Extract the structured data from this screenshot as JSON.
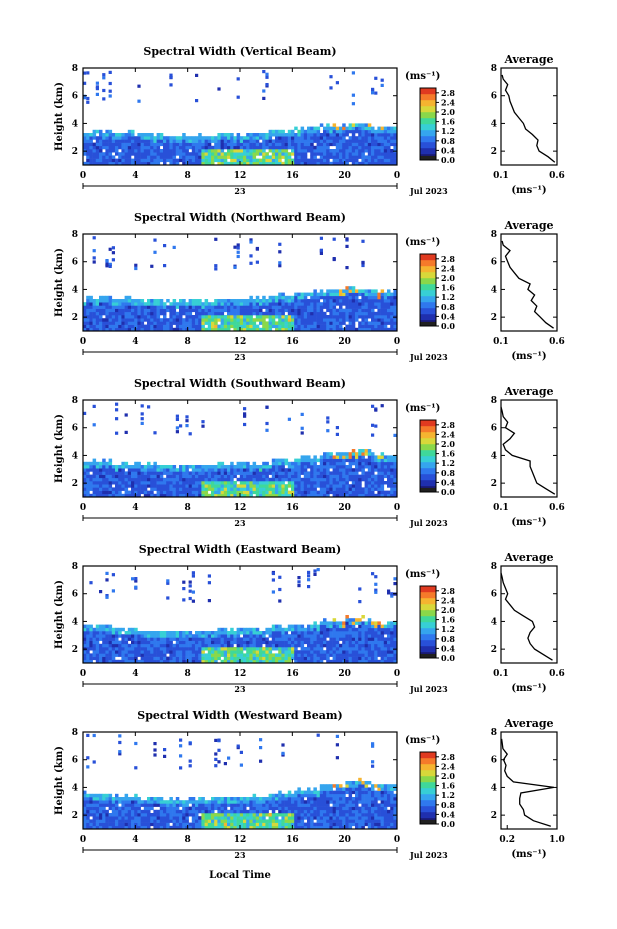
{
  "figure": {
    "xlabel": "Local Time",
    "day_label": "23",
    "month_label": "Jul 2023"
  },
  "chart_data": [
    {
      "type": "heatmap",
      "title": "Spectral Width (Vertical Beam)",
      "ylabel": "Height (km)",
      "x_ticks": [
        "0",
        "4",
        "8",
        "12",
        "16",
        "20",
        "0"
      ],
      "y_ticks": [
        "2",
        "4",
        "6",
        "8"
      ],
      "xlim": [
        0,
        24
      ],
      "ylim": [
        1,
        8
      ],
      "colorbar": {
        "unit": "(ms⁻¹)",
        "ticks": [
          "0.0",
          "0.4",
          "0.8",
          "1.2",
          "1.6",
          "2.0",
          "2.4",
          "2.8"
        ],
        "range": [
          0,
          3.0
        ]
      },
      "echo_top_km": [
        3.5,
        3.5,
        3.4,
        3.3,
        3.2,
        3.3,
        3.4,
        3.6,
        3.8,
        4.0,
        4.1,
        3.9
      ],
      "profile": {
        "title": "Average",
        "xlabel": "(ms⁻¹)",
        "x_ticks": [
          "0.1",
          "0.6"
        ],
        "xlim": [
          0.1,
          0.6
        ],
        "y_ticks": [
          "2",
          "4",
          "6",
          "8"
        ],
        "ylim": [
          1,
          8
        ],
        "heights": [
          1.2,
          1.6,
          2.0,
          2.4,
          2.8,
          3.2,
          3.6,
          4.0,
          4.4,
          4.8,
          5.2,
          5.6,
          6.0,
          6.4,
          6.8,
          7.2,
          7.5
        ],
        "values": [
          0.58,
          0.52,
          0.44,
          0.42,
          0.43,
          0.38,
          0.32,
          0.3,
          0.26,
          0.22,
          0.2,
          0.18,
          0.17,
          0.14,
          0.16,
          0.12,
          0.11
        ]
      }
    },
    {
      "type": "heatmap",
      "title": "Spectral Width (Northward Beam)",
      "ylabel": "Height (km)",
      "x_ticks": [
        "0",
        "4",
        "8",
        "12",
        "16",
        "20",
        "0"
      ],
      "y_ticks": [
        "2",
        "4",
        "6",
        "8"
      ],
      "xlim": [
        0,
        24
      ],
      "ylim": [
        1,
        8
      ],
      "colorbar": {
        "unit": "(ms⁻¹)",
        "ticks": [
          "0.0",
          "0.4",
          "0.8",
          "1.2",
          "1.6",
          "2.0",
          "2.4",
          "2.8"
        ],
        "range": [
          0,
          3.0
        ]
      },
      "echo_top_km": [
        3.6,
        3.5,
        3.4,
        3.3,
        3.3,
        3.4,
        3.5,
        3.7,
        3.9,
        4.1,
        4.2,
        4.0
      ],
      "profile": {
        "title": "Average",
        "xlabel": "(ms⁻¹)",
        "x_ticks": [
          "0.1",
          "0.6"
        ],
        "xlim": [
          0.1,
          0.6
        ],
        "y_ticks": [
          "2",
          "4",
          "6",
          "8"
        ],
        "ylim": [
          1,
          8
        ],
        "heights": [
          1.2,
          1.6,
          2.0,
          2.4,
          2.8,
          3.2,
          3.6,
          4.0,
          4.4,
          4.8,
          5.2,
          5.6,
          6.0,
          6.4,
          6.8,
          7.2,
          7.5
        ],
        "values": [
          0.57,
          0.5,
          0.45,
          0.4,
          0.42,
          0.37,
          0.4,
          0.34,
          0.36,
          0.26,
          0.22,
          0.18,
          0.16,
          0.14,
          0.18,
          0.12,
          0.11
        ]
      }
    },
    {
      "type": "heatmap",
      "title": "Spectral Width (Southward Beam)",
      "ylabel": "Height (km)",
      "x_ticks": [
        "0",
        "4",
        "8",
        "12",
        "16",
        "20",
        "0"
      ],
      "y_ticks": [
        "2",
        "4",
        "6",
        "8"
      ],
      "xlim": [
        0,
        24
      ],
      "ylim": [
        1,
        8
      ],
      "colorbar": {
        "unit": "(ms⁻¹)",
        "ticks": [
          "0.0",
          "0.4",
          "0.8",
          "1.2",
          "1.6",
          "2.0",
          "2.4",
          "2.8"
        ],
        "range": [
          0,
          3.0
        ]
      },
      "echo_top_km": [
        3.7,
        3.6,
        3.5,
        3.4,
        3.4,
        3.5,
        3.6,
        3.8,
        4.0,
        4.3,
        4.5,
        4.2
      ],
      "profile": {
        "title": "Average",
        "xlabel": "(ms⁻¹)",
        "x_ticks": [
          "0.1",
          "0.6"
        ],
        "xlim": [
          0.1,
          0.6
        ],
        "y_ticks": [
          "2",
          "4",
          "6",
          "8"
        ],
        "ylim": [
          1,
          8
        ],
        "heights": [
          1.2,
          1.6,
          2.0,
          2.4,
          2.8,
          3.2,
          3.6,
          4.0,
          4.4,
          4.8,
          5.2,
          5.6,
          6.0,
          6.4,
          6.8,
          7.2,
          7.5
        ],
        "values": [
          0.58,
          0.5,
          0.42,
          0.4,
          0.38,
          0.36,
          0.36,
          0.2,
          0.14,
          0.12,
          0.18,
          0.22,
          0.14,
          0.16,
          0.12,
          0.11,
          0.1
        ]
      }
    },
    {
      "type": "heatmap",
      "title": "Spectral Width (Eastward Beam)",
      "ylabel": "Height (km)",
      "x_ticks": [
        "0",
        "4",
        "8",
        "12",
        "16",
        "20",
        "0"
      ],
      "y_ticks": [
        "2",
        "4",
        "6",
        "8"
      ],
      "xlim": [
        0,
        24
      ],
      "ylim": [
        1,
        8
      ],
      "colorbar": {
        "unit": "(ms⁻¹)",
        "ticks": [
          "0.0",
          "0.4",
          "0.8",
          "1.2",
          "1.6",
          "2.0",
          "2.4",
          "2.8"
        ],
        "range": [
          0,
          3.0
        ]
      },
      "echo_top_km": [
        3.8,
        3.6,
        3.5,
        3.4,
        3.4,
        3.5,
        3.6,
        3.8,
        4.0,
        4.2,
        4.4,
        4.1
      ],
      "profile": {
        "title": "Average",
        "xlabel": "(ms⁻¹)",
        "x_ticks": [
          "0.1",
          "0.6"
        ],
        "xlim": [
          0.1,
          0.6
        ],
        "y_ticks": [
          "2",
          "4",
          "6",
          "8"
        ],
        "ylim": [
          1,
          8
        ],
        "heights": [
          1.2,
          1.6,
          2.0,
          2.4,
          2.8,
          3.2,
          3.6,
          4.0,
          4.4,
          4.8,
          5.2,
          5.6,
          6.0,
          6.4,
          6.8,
          7.2,
          7.5
        ],
        "values": [
          0.56,
          0.48,
          0.4,
          0.36,
          0.34,
          0.36,
          0.4,
          0.38,
          0.3,
          0.22,
          0.18,
          0.14,
          0.16,
          0.14,
          0.12,
          0.11,
          0.1
        ]
      }
    },
    {
      "type": "heatmap",
      "title": "Spectral Width (Westward Beam)",
      "ylabel": "Height (km)",
      "x_ticks": [
        "0",
        "4",
        "8",
        "12",
        "16",
        "20",
        "0"
      ],
      "y_ticks": [
        "2",
        "4",
        "6",
        "8"
      ],
      "xlim": [
        0,
        24
      ],
      "ylim": [
        1,
        8
      ],
      "colorbar": {
        "unit": "(ms⁻¹)",
        "ticks": [
          "0.0",
          "0.4",
          "0.8",
          "1.2",
          "1.6",
          "2.0",
          "2.4",
          "2.8"
        ],
        "range": [
          0,
          3.0
        ]
      },
      "echo_top_km": [
        3.7,
        3.5,
        3.4,
        3.3,
        3.3,
        3.4,
        3.5,
        3.7,
        4.0,
        4.3,
        4.6,
        4.3
      ],
      "profile": {
        "title": "Average",
        "xlabel": "(ms⁻¹)",
        "x_ticks": [
          "0.2",
          "1.0"
        ],
        "xlim": [
          0.1,
          1.0
        ],
        "y_ticks": [
          "2",
          "4",
          "6",
          "8"
        ],
        "ylim": [
          1,
          8
        ],
        "heights": [
          1.2,
          1.6,
          2.0,
          2.4,
          2.8,
          3.2,
          3.6,
          4.0,
          4.4,
          4.8,
          5.2,
          5.6,
          6.0,
          6.4,
          6.8,
          7.2,
          7.5
        ],
        "values": [
          0.9,
          0.62,
          0.48,
          0.46,
          0.4,
          0.4,
          0.42,
          0.95,
          0.3,
          0.2,
          0.16,
          0.18,
          0.14,
          0.2,
          0.13,
          0.12,
          0.11
        ]
      }
    }
  ]
}
